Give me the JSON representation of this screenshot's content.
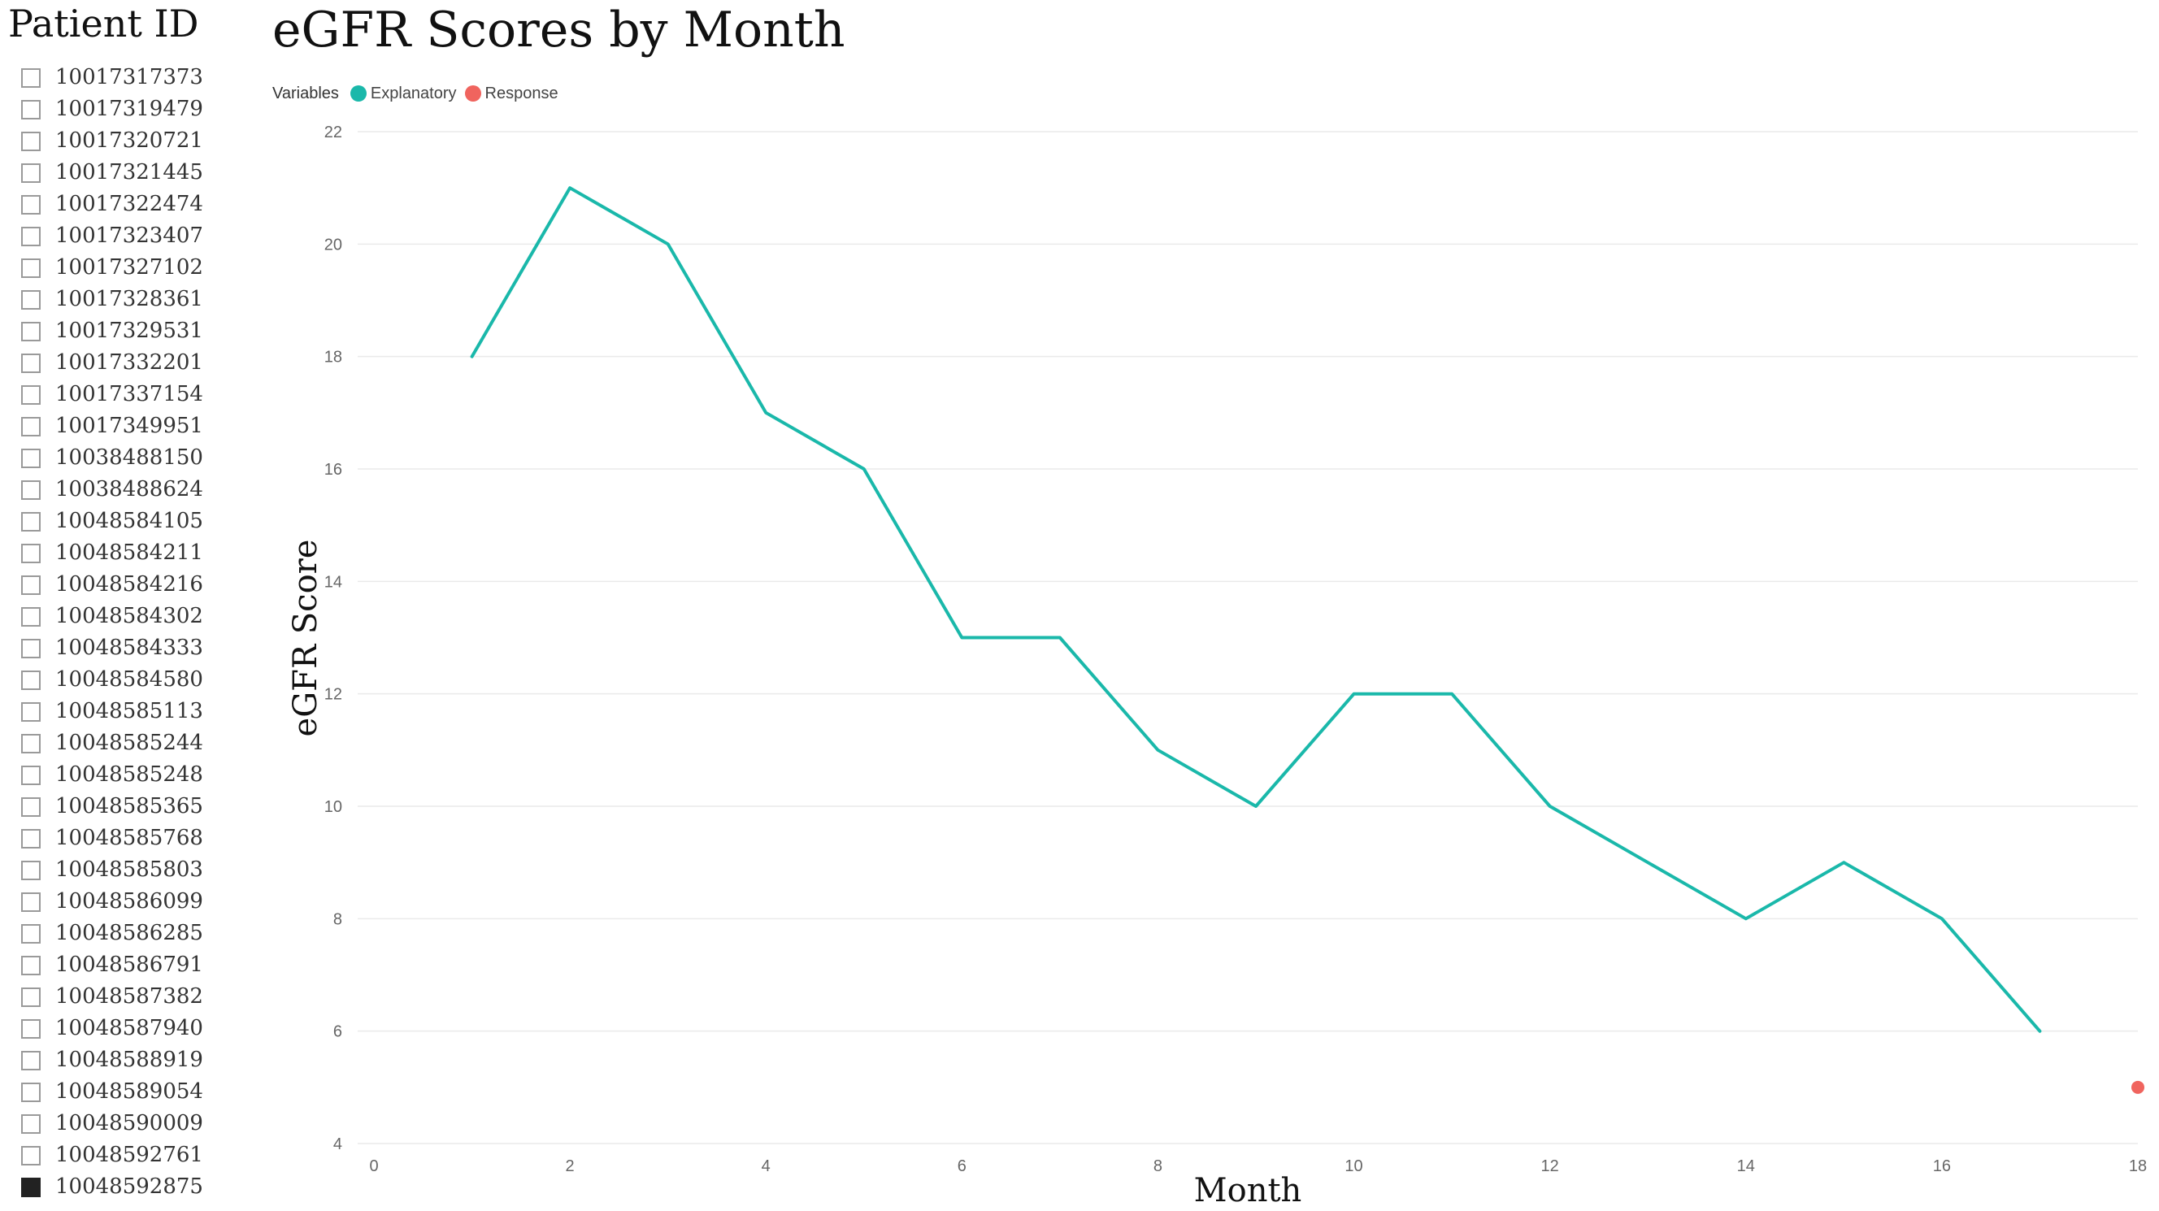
{
  "slicer": {
    "title": "Patient ID",
    "items": [
      {
        "label": "10017317373",
        "checked": false
      },
      {
        "label": "10017319479",
        "checked": false
      },
      {
        "label": "10017320721",
        "checked": false
      },
      {
        "label": "10017321445",
        "checked": false
      },
      {
        "label": "10017322474",
        "checked": false
      },
      {
        "label": "10017323407",
        "checked": false
      },
      {
        "label": "10017327102",
        "checked": false
      },
      {
        "label": "10017328361",
        "checked": false
      },
      {
        "label": "10017329531",
        "checked": false
      },
      {
        "label": "10017332201",
        "checked": false
      },
      {
        "label": "10017337154",
        "checked": false
      },
      {
        "label": "10017349951",
        "checked": false
      },
      {
        "label": "10038488150",
        "checked": false
      },
      {
        "label": "10038488624",
        "checked": false
      },
      {
        "label": "10048584105",
        "checked": false
      },
      {
        "label": "10048584211",
        "checked": false
      },
      {
        "label": "10048584216",
        "checked": false
      },
      {
        "label": "10048584302",
        "checked": false
      },
      {
        "label": "10048584333",
        "checked": false
      },
      {
        "label": "10048584580",
        "checked": false
      },
      {
        "label": "10048585113",
        "checked": false
      },
      {
        "label": "10048585244",
        "checked": false
      },
      {
        "label": "10048585248",
        "checked": false
      },
      {
        "label": "10048585365",
        "checked": false
      },
      {
        "label": "10048585768",
        "checked": false
      },
      {
        "label": "10048585803",
        "checked": false
      },
      {
        "label": "10048586099",
        "checked": false
      },
      {
        "label": "10048586285",
        "checked": false
      },
      {
        "label": "10048586791",
        "checked": false
      },
      {
        "label": "10048587382",
        "checked": false
      },
      {
        "label": "10048587940",
        "checked": false
      },
      {
        "label": "10048588919",
        "checked": false
      },
      {
        "label": "10048589054",
        "checked": false
      },
      {
        "label": "10048590009",
        "checked": false
      },
      {
        "label": "10048592761",
        "checked": false
      },
      {
        "label": "10048592875",
        "checked": true
      }
    ]
  },
  "legend": {
    "title": "Variables",
    "items": [
      {
        "label": "Explanatory",
        "color": "#1AB8AA"
      },
      {
        "label": "Response",
        "color": "#F0645E"
      }
    ]
  },
  "chart_data": {
    "type": "line",
    "title": "eGFR Scores by Month",
    "xlabel": "Month",
    "ylabel": "eGFR Score",
    "xlim": [
      0,
      18
    ],
    "ylim": [
      4,
      22
    ],
    "xticks": [
      0,
      2,
      4,
      6,
      8,
      10,
      12,
      14,
      16,
      18
    ],
    "yticks": [
      4,
      6,
      8,
      10,
      12,
      14,
      16,
      18,
      20,
      22
    ],
    "grid": "horizontal",
    "legend_position": "top-left",
    "series": [
      {
        "name": "Explanatory",
        "mark": "line",
        "color": "#1AB8AA",
        "x": [
          1,
          2,
          3,
          4,
          5,
          6,
          7,
          8,
          9,
          10,
          11,
          12,
          13,
          14,
          15,
          16,
          17
        ],
        "y": [
          18,
          21,
          20,
          17,
          16,
          13,
          13,
          11,
          10,
          12,
          12,
          10,
          9,
          8,
          9,
          8,
          6
        ]
      },
      {
        "name": "Response",
        "mark": "point",
        "color": "#F0645E",
        "x": [
          18
        ],
        "y": [
          5
        ]
      }
    ]
  }
}
